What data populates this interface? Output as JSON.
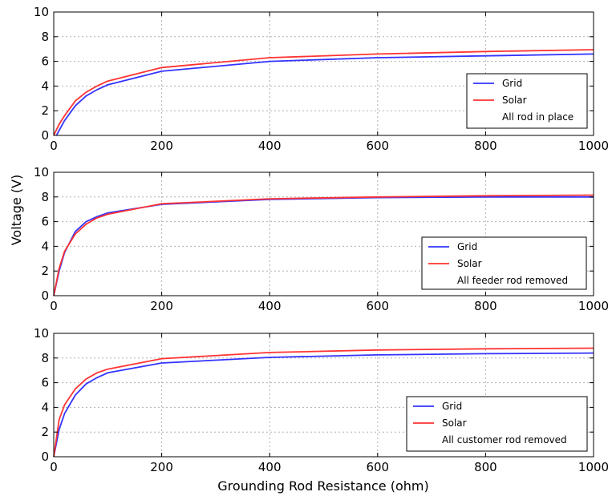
{
  "figure": {
    "ylabel": "Voltage (V)",
    "xlabel": "Grounding Rod Resistance (ohm)"
  },
  "colors": {
    "grid_series": "#3333ff",
    "solar_series": "#ff3333",
    "gridlines": "#b0b0b0"
  },
  "chart_data": [
    {
      "type": "line",
      "xlim": [
        0,
        1000
      ],
      "ylim": [
        0,
        10
      ],
      "xticks": [
        0,
        200,
        400,
        600,
        800,
        1000
      ],
      "yticks": [
        0,
        2,
        4,
        6,
        8,
        10
      ],
      "grid": true,
      "legend_position": "lower-right",
      "legend_note": "All rod in place",
      "series": [
        {
          "name": "Grid",
          "color": "#3333ff",
          "x": [
            5,
            10,
            20,
            40,
            60,
            80,
            100,
            200,
            400,
            600,
            800,
            1000
          ],
          "y": [
            0,
            0.4,
            1.2,
            2.4,
            3.2,
            3.7,
            4.1,
            5.2,
            6.0,
            6.3,
            6.45,
            6.6
          ]
        },
        {
          "name": "Solar",
          "color": "#ff3333",
          "x": [
            0,
            10,
            20,
            40,
            60,
            80,
            100,
            200,
            400,
            600,
            800,
            1000
          ],
          "y": [
            0,
            0.9,
            1.6,
            2.8,
            3.5,
            4.0,
            4.4,
            5.5,
            6.3,
            6.6,
            6.8,
            6.95
          ]
        }
      ]
    },
    {
      "type": "line",
      "xlim": [
        0,
        1000
      ],
      "ylim": [
        0,
        10
      ],
      "xticks": [
        0,
        200,
        400,
        600,
        800,
        1000
      ],
      "yticks": [
        0,
        2,
        4,
        6,
        8,
        10
      ],
      "grid": true,
      "legend_position": "lower-right",
      "legend_note": "All feeder rod removed",
      "series": [
        {
          "name": "Grid",
          "color": "#3333ff",
          "x": [
            0,
            10,
            20,
            40,
            60,
            80,
            100,
            200,
            400,
            600,
            800,
            1000
          ],
          "y": [
            0,
            2.0,
            3.5,
            5.2,
            6.0,
            6.4,
            6.7,
            7.4,
            7.8,
            7.95,
            8.0,
            8.0
          ]
        },
        {
          "name": "Solar",
          "color": "#ff3333",
          "x": [
            0,
            10,
            20,
            40,
            60,
            80,
            100,
            200,
            400,
            600,
            800,
            1000
          ],
          "y": [
            0,
            2.2,
            3.6,
            5.0,
            5.8,
            6.3,
            6.6,
            7.45,
            7.85,
            8.0,
            8.1,
            8.15
          ]
        }
      ]
    },
    {
      "type": "line",
      "xlim": [
        0,
        1000
      ],
      "ylim": [
        0,
        10
      ],
      "xticks": [
        0,
        200,
        400,
        600,
        800,
        1000
      ],
      "yticks": [
        0,
        2,
        4,
        6,
        8,
        10
      ],
      "grid": true,
      "legend_position": "lower-right",
      "legend_note": "All customer rod removed",
      "series": [
        {
          "name": "Grid",
          "color": "#3333ff",
          "x": [
            0,
            10,
            20,
            40,
            60,
            80,
            100,
            200,
            400,
            600,
            800,
            1000
          ],
          "y": [
            0,
            2.2,
            3.5,
            5.0,
            5.9,
            6.4,
            6.8,
            7.6,
            8.05,
            8.25,
            8.35,
            8.4
          ]
        },
        {
          "name": "Solar",
          "color": "#ff3333",
          "x": [
            0,
            10,
            20,
            40,
            60,
            80,
            100,
            200,
            400,
            600,
            800,
            1000
          ],
          "y": [
            0,
            3.0,
            4.2,
            5.5,
            6.3,
            6.8,
            7.1,
            7.95,
            8.45,
            8.65,
            8.75,
            8.8
          ]
        }
      ]
    }
  ]
}
